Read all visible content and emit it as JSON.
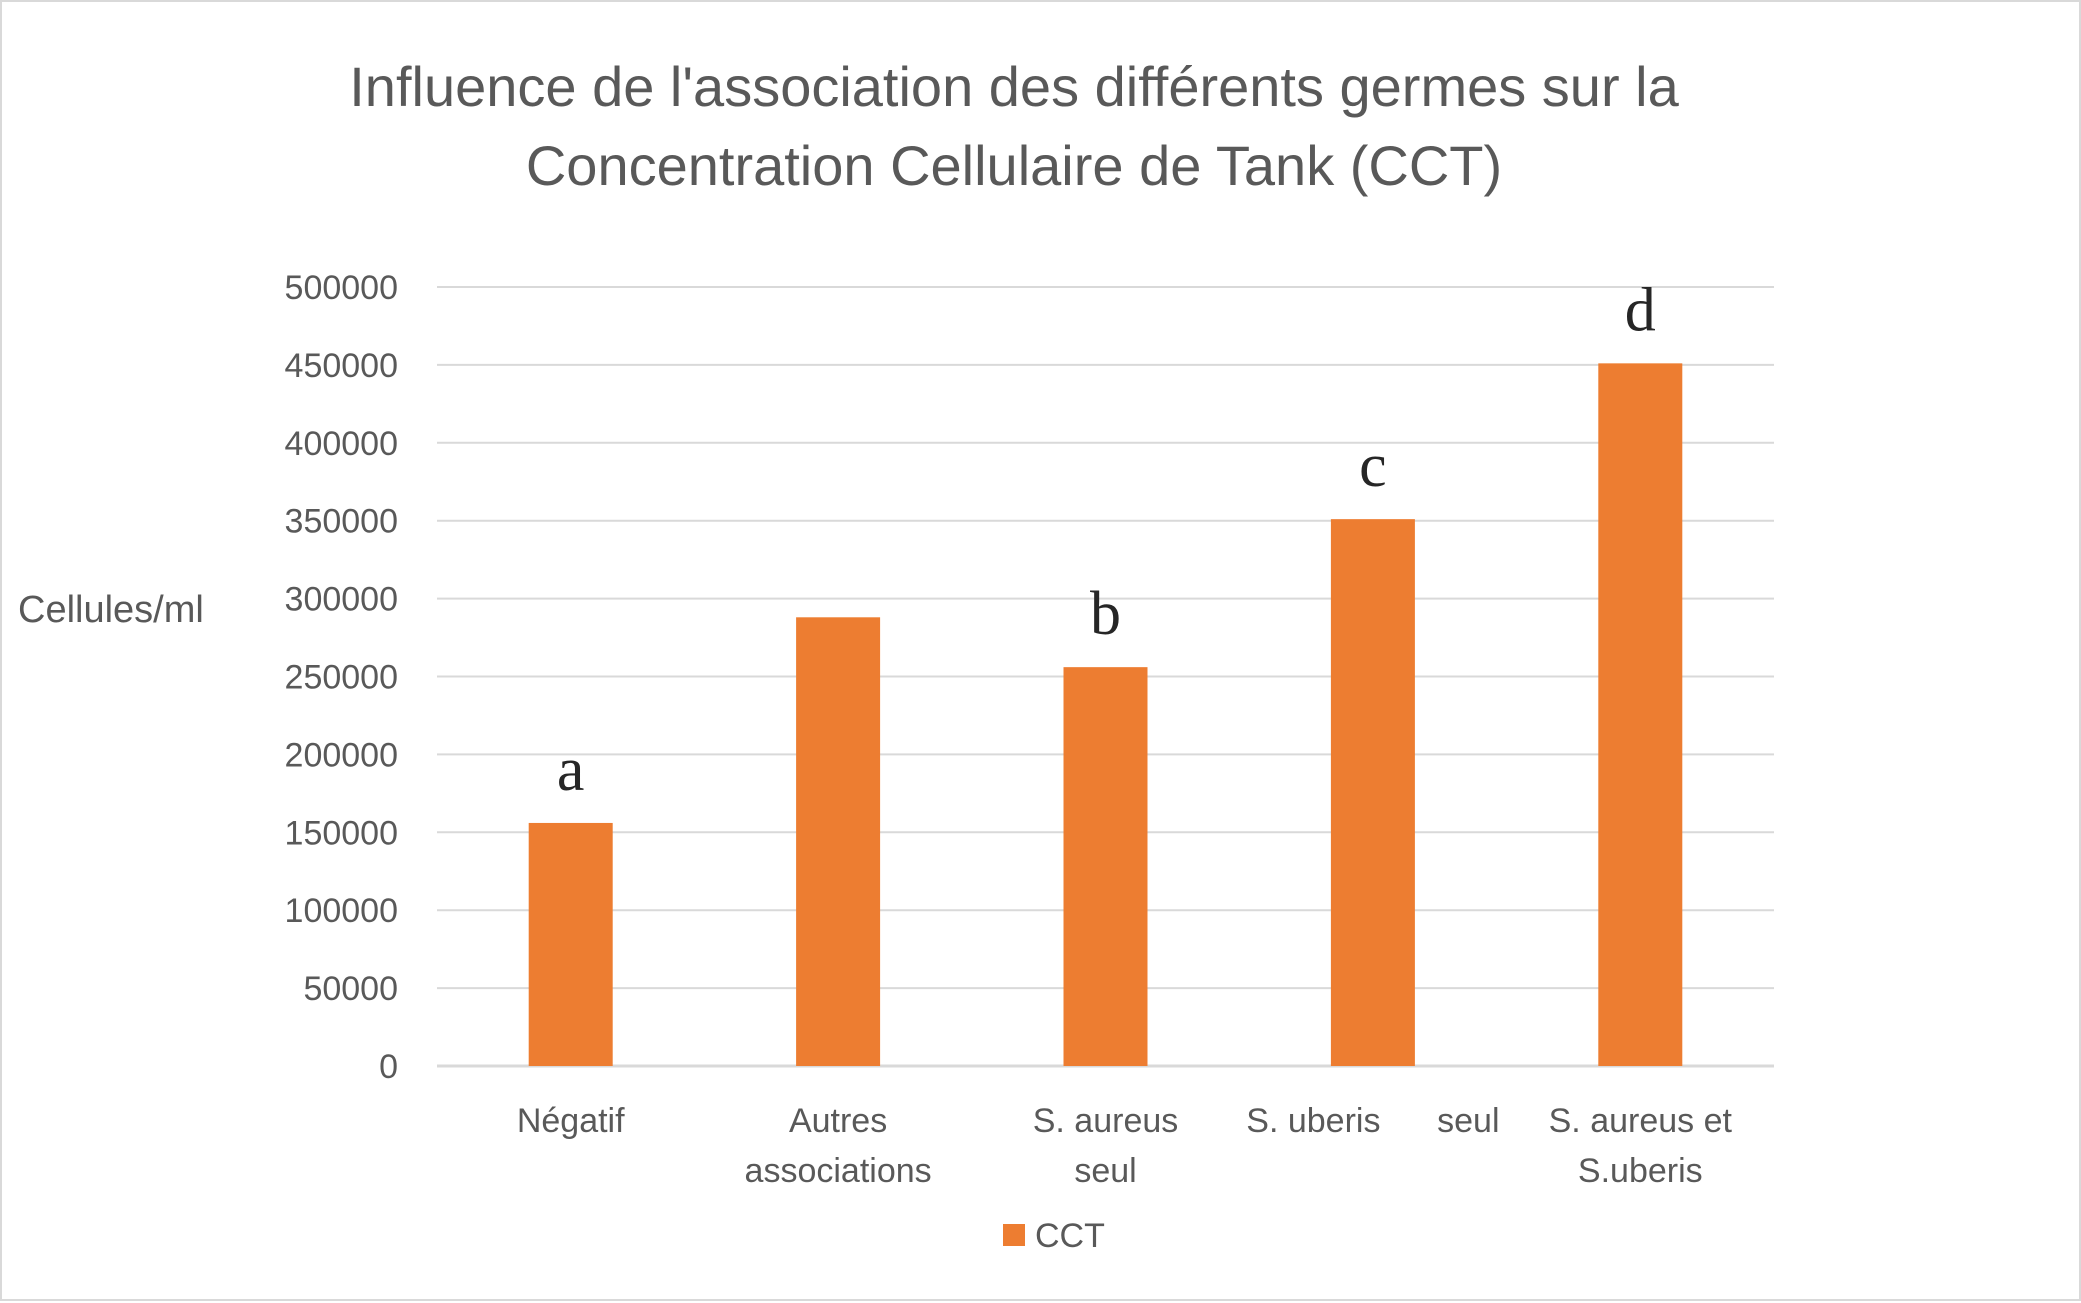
{
  "chart_data": {
    "type": "bar",
    "title_lines": [
      "Influence de l'association des différents germes sur la",
      "Concentration Cellulaire de Tank (CCT)"
    ],
    "ylabel": "Cellules/ml",
    "xlabel": "",
    "ylim": [
      0,
      500000
    ],
    "yticks": [
      "0",
      "50000",
      "100000",
      "150000",
      "200000",
      "250000",
      "300000",
      "350000",
      "400000",
      "450000",
      "500000"
    ],
    "categories": [
      [
        "Négatif"
      ],
      [
        "Autres",
        "associations"
      ],
      [
        "S. aureus",
        "seul"
      ],
      [
        "S. uberis      seul"
      ],
      [
        "S. aureus et",
        "S.uberis"
      ]
    ],
    "series": [
      {
        "name": "CCT",
        "color": "#ED7D31",
        "values": [
          156000,
          288000,
          256000,
          351000,
          451000
        ]
      }
    ],
    "annotations": [
      "a",
      "",
      "b",
      "c",
      "d"
    ],
    "grid": true,
    "legend_position": "bottom",
    "colors": {
      "bar": "#ED7D31",
      "grid": "#d9d9d9",
      "text": "#595959"
    }
  }
}
